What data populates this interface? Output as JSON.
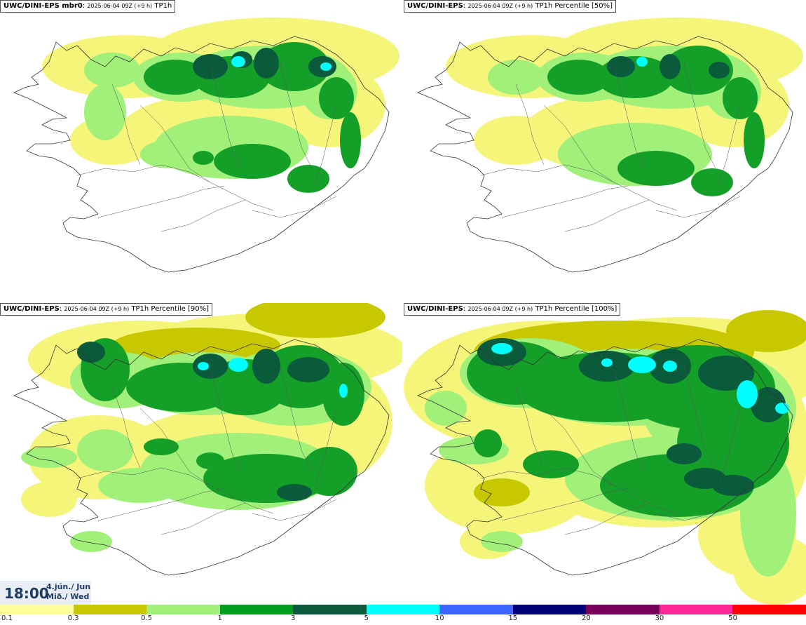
{
  "panels": [
    {
      "model": "UWC/DINI-EPS mbr0",
      "run": "2025-06-04 09Z (+9 h)",
      "field": "TP1h"
    },
    {
      "model": "UWC/DINI-EPS",
      "run": "2025-06-04 09Z (+9 h)",
      "field": "TP1h Percentile [50%]"
    },
    {
      "model": "UWC/DINI-EPS",
      "run": "2025-06-04 09Z (+9 h)",
      "field": "TP1h Percentile [90%]"
    },
    {
      "model": "UWC/DINI-EPS",
      "run": "2025-06-04 09Z (+9 h)",
      "field": "TP1h Percentile [100%]"
    }
  ],
  "valid": {
    "time": "18:00",
    "date_line1": "4.jún./ Jun",
    "date_line2": "Mið./ Wed"
  },
  "colorbar": {
    "labels": [
      "0.1",
      "0.3",
      "0.5",
      "1",
      "3",
      "5",
      "10",
      "15",
      "20",
      "30",
      "50"
    ],
    "colors": [
      "#ffff99",
      "#c8c800",
      "#a0f07a",
      "#009e1e",
      "#0a5a3c",
      "#00ffff",
      "#3c64ff",
      "#000078",
      "#78005a",
      "#ff2896",
      "#ff0000"
    ]
  },
  "colors": {
    "yellow": "#f5f57a",
    "olive": "#c8c800",
    "lightgreen": "#a0f07a",
    "green": "#14a028",
    "darkgreen": "#0a5a3c",
    "cyan": "#00ffff"
  }
}
